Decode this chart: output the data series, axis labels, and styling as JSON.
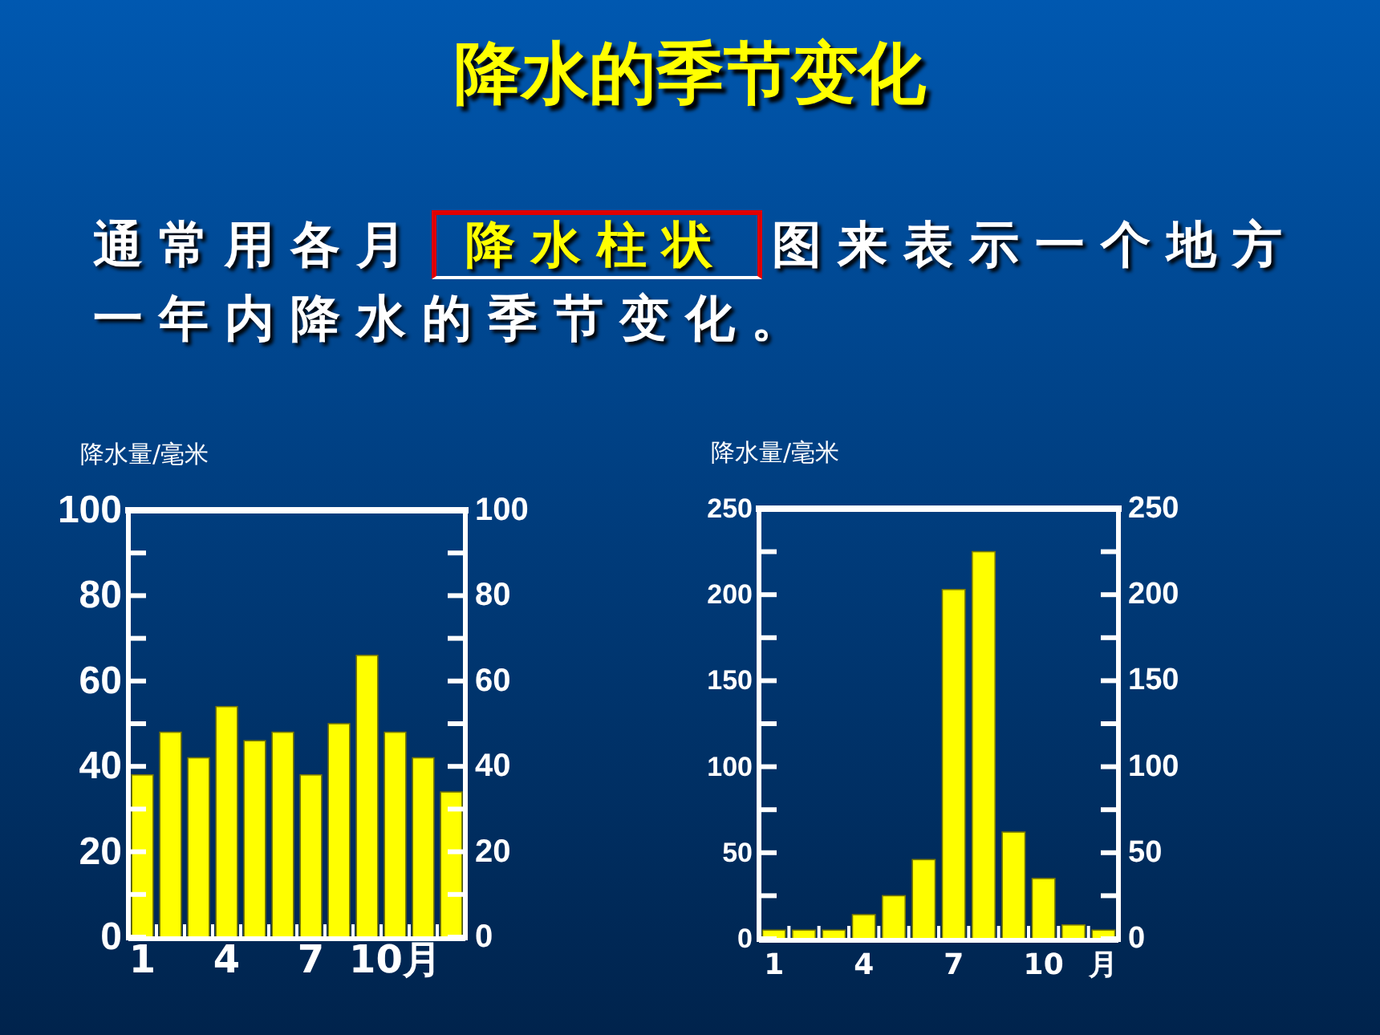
{
  "chart_data": [
    {
      "type": "bar",
      "title": "降水的季节变化",
      "annotations": [
        "通常用各月",
        "降水柱状",
        "图来表示一个地方一年内降水的季节变化。"
      ],
      "ylabel": "降水量/毫米",
      "categories": [
        "1",
        null,
        null,
        "4",
        null,
        null,
        "7",
        null,
        null,
        "10月",
        null,
        null
      ],
      "values": [
        38,
        48,
        42,
        54,
        46,
        48,
        38,
        50,
        66,
        48,
        42,
        34
      ],
      "color": "#ffff00",
      "ylim": [
        0,
        100
      ],
      "yticks": [
        0,
        {
          "value": 10,
          "label": null
        },
        20,
        {
          "value": 30,
          "label": null
        },
        40,
        {
          "value": 50,
          "label": null
        },
        60,
        {
          "value": 70,
          "label": null
        },
        80,
        {
          "value": 90,
          "label": null
        },
        100
      ],
      "y2lim": [
        0,
        100
      ],
      "y2ticks": [
        0,
        {
          "value": 10,
          "label": null
        },
        20,
        {
          "value": 30,
          "label": null
        },
        40,
        {
          "value": 50,
          "label": null
        },
        60,
        {
          "value": 70,
          "label": null
        },
        80,
        {
          "value": 90,
          "label": null
        },
        100
      ]
    },
    {
      "type": "bar",
      "ylabel": "降水量/毫米",
      "categories": [
        "1",
        null,
        null,
        "4",
        null,
        null,
        "7",
        null,
        null,
        "10",
        null,
        "月"
      ],
      "values": [
        5,
        5,
        5,
        14,
        25,
        46,
        203,
        225,
        62,
        35,
        8,
        5
      ],
      "color": "#ffff00",
      "ylim": [
        0,
        250
      ],
      "yticks": [
        0,
        {
          "value": 25,
          "label": null
        },
        50,
        {
          "value": 75,
          "label": null
        },
        100,
        {
          "value": 125,
          "label": null
        },
        150,
        {
          "value": 175,
          "label": null
        },
        200,
        {
          "value": 225,
          "label": null
        },
        250
      ],
      "y2lim": [
        0,
        250
      ],
      "y2ticks": [
        0,
        {
          "value": 25,
          "label": null
        },
        50,
        {
          "value": 75,
          "label": null
        },
        100,
        {
          "value": 125,
          "label": null
        },
        150,
        {
          "value": 175,
          "label": null
        },
        200,
        {
          "value": 225,
          "label": null
        },
        250
      ]
    }
  ]
}
